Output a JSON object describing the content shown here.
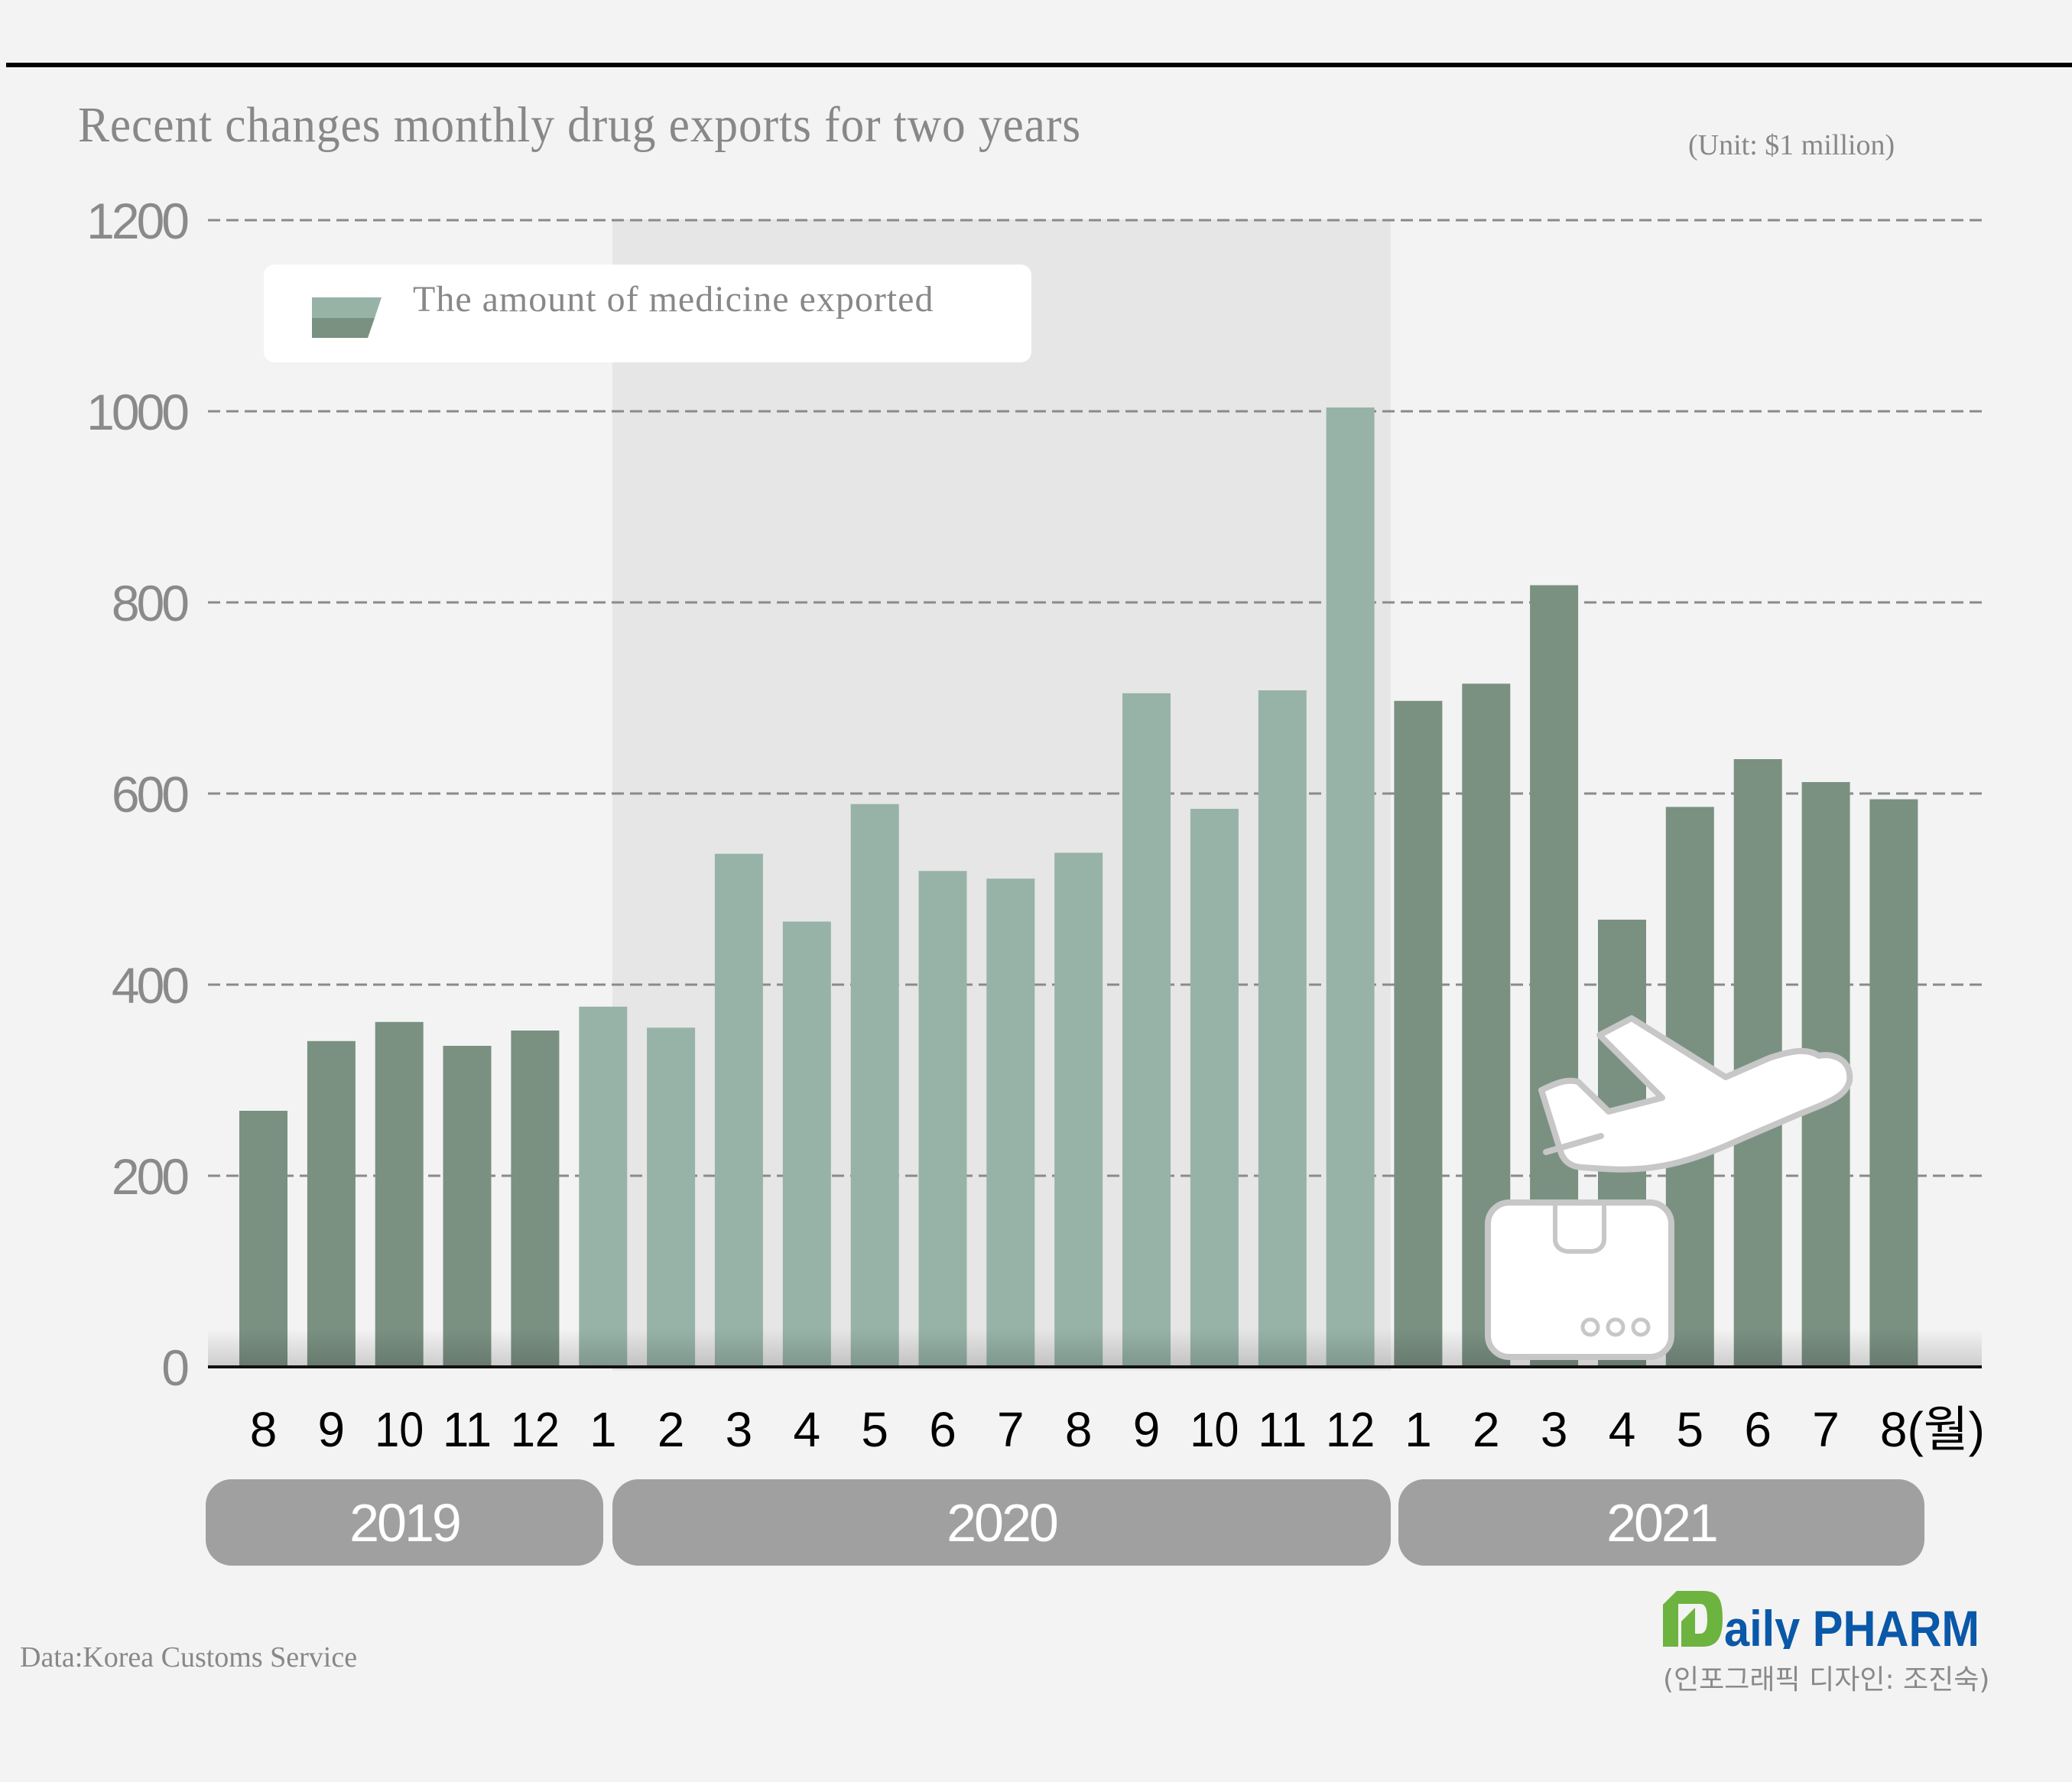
{
  "header": {
    "title": "Recent changes monthly drug exports for two years",
    "unit": "(Unit: $1 million)"
  },
  "legend": {
    "label": "The amount of medicine exported"
  },
  "colors": {
    "background": "#f3f3f3",
    "bar_2019_2021": "#7a9182",
    "bar_2020": "#97b3a7",
    "highlight_band_2020": "#e6e6e6",
    "gridline": "#8a8a8a",
    "year_pill": "#a0a0a0",
    "logo_green": "#6db33f",
    "logo_blue": "#0a58a8"
  },
  "chart_data": {
    "type": "bar",
    "title": "Recent changes monthly drug exports for two years",
    "unit_note": "(Unit: $1 million)",
    "xlabel": "",
    "ylabel": "",
    "ylim": [
      0,
      1200
    ],
    "yticks": [
      0,
      200,
      400,
      600,
      800,
      1000,
      1200
    ],
    "ytick_labels": [
      "0",
      "200",
      "400",
      "600",
      "800",
      "1000",
      "1200"
    ],
    "grid": "horizontal dashed",
    "legend": [
      "The amount of medicine exported"
    ],
    "legend_position": "top-left",
    "categories": [
      "8",
      "9",
      "10",
      "11",
      "12",
      "1",
      "2",
      "3",
      "4",
      "5",
      "6",
      "7",
      "8",
      "9",
      "10",
      "11",
      "12",
      "1",
      "2",
      "3",
      "4",
      "5",
      "6",
      "7",
      "8(월)"
    ],
    "years": [
      "2019",
      "2019",
      "2019",
      "2019",
      "2019",
      "2020",
      "2020",
      "2020",
      "2020",
      "2020",
      "2020",
      "2020",
      "2020",
      "2020",
      "2020",
      "2020",
      "2020",
      "2021",
      "2021",
      "2021",
      "2021",
      "2021",
      "2021",
      "2021",
      "2021"
    ],
    "series": [
      {
        "name": "The amount of medicine exported",
        "values": [
          268,
          341,
          361,
          336,
          352,
          377,
          355,
          537,
          466,
          589,
          519,
          511,
          538,
          705,
          584,
          708,
          1004,
          697,
          715,
          818,
          468,
          586,
          636,
          612,
          594
        ]
      }
    ],
    "year_groups": [
      {
        "label": "2019년",
        "start": 0,
        "end": 4
      },
      {
        "label": "2020년",
        "start": 5,
        "end": 16
      },
      {
        "label": "2021년",
        "start": 17,
        "end": 24
      }
    ],
    "highlighted_group": "2020"
  },
  "year_pills": [
    {
      "label": "2019"
    },
    {
      "label": "2020"
    },
    {
      "label": "2021"
    }
  ],
  "icons": {
    "illustration": [
      "airplane-icon",
      "package-box-icon"
    ]
  },
  "footer": {
    "source": "Data:Korea Customs Service",
    "logo_d": "D",
    "logo_text": "aily PHARM",
    "credit": "(인포그래픽 디자인: 조진숙)"
  }
}
